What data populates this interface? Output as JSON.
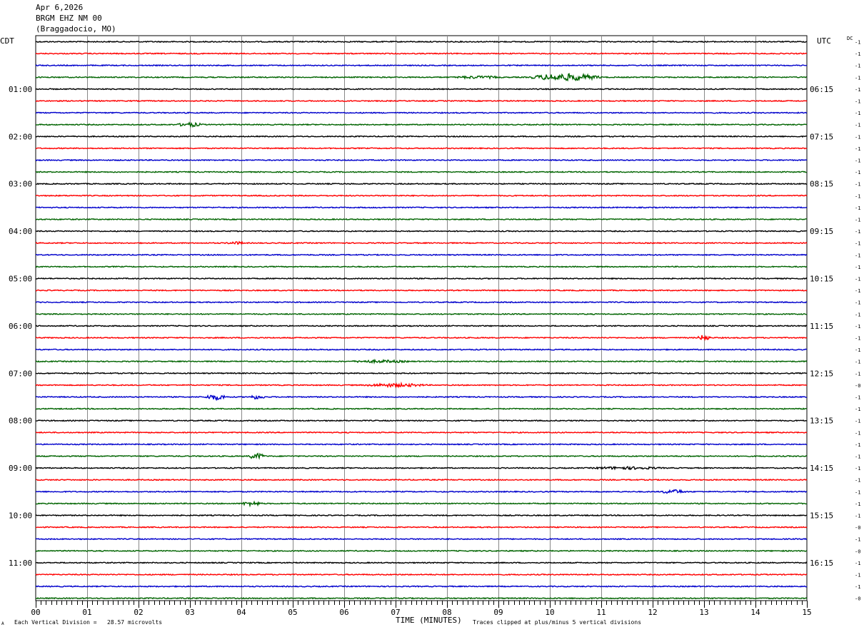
{
  "header": {
    "date": "Apr 6,2026",
    "station": "BRGM EHZ NM 00",
    "location": "(Braggadocio, MO)"
  },
  "left_zone": "CDT",
  "right_zone": "UTC",
  "dc_label": "DC",
  "footer": {
    "division_note": "Each Vertical Division =   28.57 microvolts",
    "xlabel": "TIME (MINUTES)",
    "clip_note": "Traces clipped at plus/minus 5 vertical divisions",
    "corner_mark": "A"
  },
  "colors": {
    "line_black": "#000000",
    "line_red": "#ff0000",
    "line_blue": "#0000cc",
    "line_green": "#006400"
  },
  "chart_data": {
    "type": "line",
    "title": "BRGM EHZ NM 00 (Braggadocio, MO)",
    "xlabel": "TIME (MINUTES)",
    "xlim": [
      0,
      15
    ],
    "x_ticks": [
      "00",
      "01",
      "02",
      "03",
      "04",
      "05",
      "06",
      "07",
      "08",
      "09",
      "10",
      "11",
      "12",
      "13",
      "14",
      "15"
    ],
    "row_count": 48,
    "row_colors": [
      "#000000",
      "#ff0000",
      "#0000cc",
      "#006400"
    ],
    "left_hour_labels": [
      "01:00",
      "02:00",
      "03:00",
      "04:00",
      "05:00",
      "06:00",
      "07:00",
      "08:00",
      "09:00",
      "10:00",
      "11:00"
    ],
    "right_hour_labels": [
      "06:15",
      "07:15",
      "08:15",
      "09:15",
      "10:15",
      "11:15",
      "12:15",
      "13:15",
      "14:15",
      "15:15",
      "16:15"
    ],
    "dc_offsets": [
      "-1",
      "-1",
      "-1",
      "-1",
      "-1",
      "-1",
      "-1",
      "-1",
      "-1",
      "-1",
      "-1",
      "-1",
      "-1",
      "-1",
      "-1",
      "-1",
      "-1",
      "-1",
      "-1",
      "-1",
      "-1",
      "-1",
      "-1",
      "-1",
      "-1",
      "-1",
      "-1",
      "-1",
      "-1",
      "-0",
      "-1",
      "-1",
      "-1",
      "-1",
      "-1",
      "-1",
      "-1",
      "-1",
      "-1",
      "-1",
      "-1",
      "-0",
      "-1",
      "-0",
      "-1",
      "-1",
      "-1",
      "-0"
    ],
    "events": [
      {
        "row": 3,
        "center_min": 10.3,
        "width_min": 1.6,
        "amp": 5
      },
      {
        "row": 3,
        "center_min": 8.6,
        "width_min": 1.2,
        "amp": 2
      },
      {
        "row": 7,
        "center_min": 3.0,
        "width_min": 0.6,
        "amp": 3
      },
      {
        "row": 17,
        "center_min": 3.9,
        "width_min": 0.5,
        "amp": 2
      },
      {
        "row": 25,
        "center_min": 13.0,
        "width_min": 0.3,
        "amp": 4
      },
      {
        "row": 27,
        "center_min": 6.7,
        "width_min": 1.5,
        "amp": 2
      },
      {
        "row": 29,
        "center_min": 7.0,
        "width_min": 1.5,
        "amp": 2.5
      },
      {
        "row": 30,
        "center_min": 3.5,
        "width_min": 0.5,
        "amp": 4
      },
      {
        "row": 30,
        "center_min": 4.3,
        "width_min": 0.4,
        "amp": 3
      },
      {
        "row": 35,
        "center_min": 4.3,
        "width_min": 0.4,
        "amp": 4
      },
      {
        "row": 36,
        "center_min": 11.5,
        "width_min": 1.8,
        "amp": 2
      },
      {
        "row": 38,
        "center_min": 12.4,
        "width_min": 0.6,
        "amp": 3
      },
      {
        "row": 39,
        "center_min": 4.2,
        "width_min": 0.5,
        "amp": 3
      }
    ]
  }
}
